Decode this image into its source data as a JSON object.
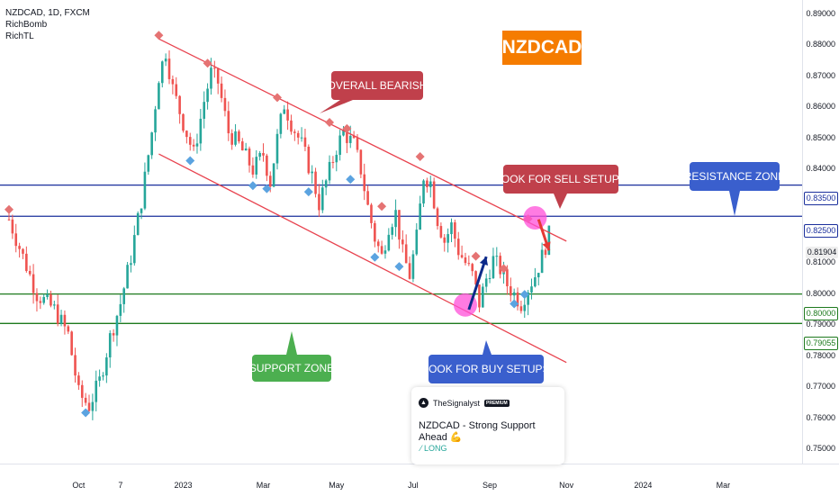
{
  "header": {
    "symbol_line": "NZDCAD, 1D, FXCM",
    "indicator_1": "RichBomb",
    "indicator_2": "RichTL"
  },
  "title_badge": "NZDCAD",
  "callouts": {
    "overall_bearish": "OVERALL BEARISH",
    "look_for_sell": "LOOK FOR SELL SETUPS",
    "resistance_zone": "RESISTANCE ZONE",
    "support_zone": "SUPPORT ZONE",
    "look_for_buy": "LOOK FOR BUY SETUPS"
  },
  "idea_card": {
    "author": "TheSignalyst",
    "badge": "PREMIUM",
    "title": "NZDCAD - Strong Support Ahead 💪",
    "direction": "LONG",
    "direction_icon": "trend-up-icon"
  },
  "colors": {
    "up": "#26a69a",
    "down": "#ef5350",
    "channel": "#e8434f",
    "resistance": "#1a2f9c",
    "support": "#1e7a1e",
    "accent": "#f57c00",
    "highlight": "#ff4fd8",
    "pivot_high": "#e57373",
    "pivot_low": "#5ba3e0"
  },
  "chart_data": {
    "type": "candlestick",
    "title": "NZDCAD, 1D, FXCM",
    "x_ticks": [
      "Oct",
      "7",
      "2023",
      "Mar",
      "May",
      "Jul",
      "Sep",
      "Nov",
      "2024",
      "Mar"
    ],
    "y_ticks": [
      "0.89000",
      "0.88000",
      "0.87000",
      "0.86000",
      "0.85000",
      "0.84000",
      "0.83000",
      "0.82000",
      "0.81000",
      "0.80000",
      "0.79000",
      "0.78000",
      "0.77000",
      "0.76000",
      "0.75000"
    ],
    "ylim": [
      0.7455,
      0.8945
    ],
    "price_markers": [
      {
        "label": "0.83500",
        "value": 0.835,
        "type": "resistance"
      },
      {
        "label": "0.82500",
        "value": 0.825,
        "type": "resistance"
      },
      {
        "label": "0.81904",
        "value": 0.81904,
        "type": "last"
      },
      {
        "label": "0.80000",
        "value": 0.8,
        "type": "support"
      },
      {
        "label": "0.79055",
        "value": 0.79055,
        "type": "support"
      }
    ],
    "horizontal_levels": [
      {
        "value": 0.835,
        "zone": "resistance"
      },
      {
        "value": 0.825,
        "zone": "resistance"
      },
      {
        "value": 0.8,
        "zone": "support"
      },
      {
        "value": 0.79055,
        "zone": "support"
      }
    ],
    "timeline_ticks": [
      {
        "label": "Oct",
        "index": 20
      },
      {
        "label": "7",
        "index": 32
      },
      {
        "label": "2023",
        "index": 50
      },
      {
        "label": "Mar",
        "index": 73
      },
      {
        "label": "May",
        "index": 94
      },
      {
        "label": "Jul",
        "index": 116
      },
      {
        "label": "Sep",
        "index": 138
      },
      {
        "label": "Nov",
        "index": 160
      },
      {
        "label": "2024",
        "index": 182
      },
      {
        "label": "Mar",
        "index": 205
      }
    ],
    "close_path": [
      [
        0,
        0.824
      ],
      [
        4,
        0.812
      ],
      [
        8,
        0.8
      ],
      [
        13,
        0.795
      ],
      [
        17,
        0.787
      ],
      [
        20,
        0.768
      ],
      [
        23,
        0.764
      ],
      [
        26,
        0.772
      ],
      [
        29,
        0.786
      ],
      [
        32,
        0.797
      ],
      [
        35,
        0.812
      ],
      [
        38,
        0.83
      ],
      [
        41,
        0.852
      ],
      [
        43,
        0.87
      ],
      [
        45,
        0.878
      ],
      [
        47,
        0.866
      ],
      [
        50,
        0.855
      ],
      [
        53,
        0.845
      ],
      [
        56,
        0.862
      ],
      [
        58,
        0.871
      ],
      [
        60,
        0.868
      ],
      [
        63,
        0.852
      ],
      [
        66,
        0.848
      ],
      [
        70,
        0.84
      ],
      [
        73,
        0.845
      ],
      [
        75,
        0.836
      ],
      [
        77,
        0.85
      ],
      [
        79,
        0.861
      ],
      [
        81,
        0.855
      ],
      [
        84,
        0.848
      ],
      [
        87,
        0.838
      ],
      [
        89,
        0.829
      ],
      [
        91,
        0.836
      ],
      [
        94,
        0.847
      ],
      [
        96,
        0.852
      ],
      [
        99,
        0.848
      ],
      [
        101,
        0.84
      ],
      [
        103,
        0.828
      ],
      [
        105,
        0.818
      ],
      [
        107,
        0.812
      ],
      [
        109,
        0.822
      ],
      [
        111,
        0.826
      ],
      [
        113,
        0.813
      ],
      [
        115,
        0.806
      ],
      [
        117,
        0.818
      ],
      [
        119,
        0.838
      ],
      [
        121,
        0.836
      ],
      [
        123,
        0.824
      ],
      [
        125,
        0.817
      ],
      [
        127,
        0.822
      ],
      [
        129,
        0.814
      ],
      [
        131,
        0.81
      ],
      [
        133,
        0.806
      ],
      [
        135,
        0.797
      ],
      [
        137,
        0.805
      ],
      [
        139,
        0.811
      ],
      [
        141,
        0.808
      ],
      [
        143,
        0.803
      ],
      [
        145,
        0.8
      ],
      [
        147,
        0.797
      ],
      [
        149,
        0.802
      ],
      [
        151,
        0.806
      ],
      [
        153,
        0.812
      ],
      [
        155,
        0.819
      ]
    ],
    "channel_upper": [
      [
        43,
        0.882
      ],
      [
        160,
        0.817
      ]
    ],
    "channel_lower": [
      [
        43,
        0.845
      ],
      [
        160,
        0.778
      ]
    ],
    "pivots_high": [
      [
        43,
        0.882
      ],
      [
        57,
        0.873
      ],
      [
        77,
        0.862
      ],
      [
        92,
        0.854
      ],
      [
        97,
        0.852
      ],
      [
        118,
        0.843
      ],
      [
        0,
        0.826
      ],
      [
        107,
        0.827
      ],
      [
        134,
        0.811
      ],
      [
        142,
        0.807
      ],
      [
        149,
        0.823
      ]
    ],
    "pivots_low": [
      [
        52,
        0.844
      ],
      [
        70,
        0.836
      ],
      [
        74,
        0.835
      ],
      [
        86,
        0.834
      ],
      [
        98,
        0.838
      ],
      [
        105,
        0.813
      ],
      [
        112,
        0.81
      ],
      [
        145,
        0.798
      ],
      [
        148,
        0.801
      ],
      [
        22,
        0.763
      ]
    ],
    "projection_up": [
      [
        132,
        0.795
      ],
      [
        137,
        0.812
      ]
    ],
    "projection_down": [
      [
        152,
        0.824
      ],
      [
        155,
        0.814
      ]
    ],
    "highlight_points": [
      [
        131,
        0.7965
      ],
      [
        151,
        0.8245
      ]
    ]
  }
}
